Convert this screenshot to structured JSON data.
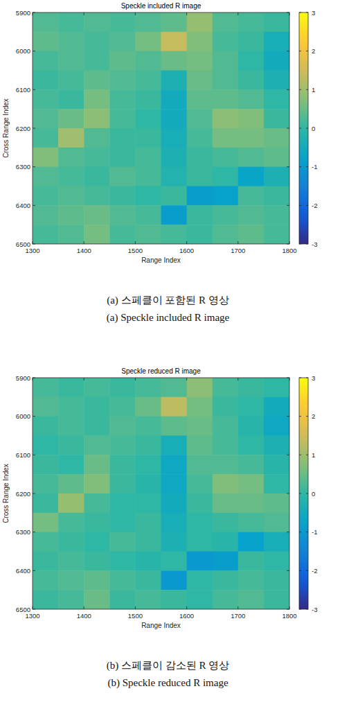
{
  "chart_data": [
    {
      "type": "heatmap",
      "title": "Speckle included R image",
      "x_label": "Range Index",
      "y_label": "Cross Range Index",
      "caption": [
        "(a) 스페클이 포함된 R 영상",
        "(a) Speckle included R image"
      ],
      "xlim": [
        1300,
        1800
      ],
      "ylim": [
        5900,
        6500
      ],
      "xticks": [
        1300,
        1400,
        1500,
        1600,
        1700,
        1800
      ],
      "yticks": [
        5900,
        6000,
        6100,
        6200,
        6300,
        6400,
        6500
      ],
      "x": [
        1325,
        1375,
        1425,
        1475,
        1525,
        1575,
        1625,
        1675,
        1725,
        1775
      ],
      "y": [
        5925,
        5975,
        6025,
        6075,
        6125,
        6175,
        6225,
        6275,
        6325,
        6375,
        6425,
        6475
      ],
      "cells": [
        [
          0.3,
          0.2,
          0.3,
          0.2,
          0.3,
          0.4,
          0.9,
          0.3,
          0.2,
          0.1
        ],
        [
          0.4,
          0.3,
          0.2,
          0.3,
          0.6,
          1.4,
          0.7,
          0.2,
          0.1,
          -0.4
        ],
        [
          0.2,
          0.3,
          0.2,
          0.4,
          0.3,
          0.5,
          0.6,
          0.3,
          0.0,
          -0.5
        ],
        [
          0.1,
          0.2,
          0.4,
          0.3,
          0.2,
          -0.3,
          0.5,
          0.3,
          0.1,
          -0.3
        ],
        [
          0.2,
          0.1,
          0.6,
          0.2,
          0.1,
          -0.5,
          0.4,
          0.4,
          0.3,
          0.0
        ],
        [
          0.3,
          0.5,
          0.8,
          0.2,
          0.0,
          -0.5,
          0.3,
          0.8,
          0.7,
          0.1
        ],
        [
          0.2,
          1.0,
          0.3,
          0.1,
          0.1,
          -0.4,
          0.2,
          0.6,
          0.6,
          0.5
        ],
        [
          0.7,
          0.3,
          0.2,
          0.1,
          0.2,
          -0.3,
          0.1,
          0.2,
          0.3,
          0.4
        ],
        [
          0.3,
          0.2,
          0.1,
          0.3,
          0.2,
          -0.2,
          0.1,
          0.0,
          -0.7,
          -0.3
        ],
        [
          0.2,
          0.3,
          0.2,
          0.1,
          0.0,
          0.1,
          -0.9,
          -0.8,
          0.2,
          0.1
        ],
        [
          0.3,
          0.4,
          0.5,
          0.3,
          0.2,
          -0.9,
          0.1,
          0.2,
          0.3,
          0.2
        ],
        [
          0.2,
          0.3,
          0.6,
          0.2,
          0.3,
          0.2,
          0.1,
          0.3,
          0.4,
          0.2
        ]
      ],
      "colorbar_lim": [
        -3,
        3
      ],
      "colorbar_ticks": [
        -3,
        -2,
        -1,
        0,
        1,
        2,
        3
      ]
    },
    {
      "type": "heatmap",
      "title": "Speckle reduced R image",
      "x_label": "Range Index",
      "y_label": "Cross Range Index",
      "caption": [
        "(b) 스페클이 감소된 R 영상",
        "(b) Speckle reduced R image"
      ],
      "xlim": [
        1300,
        1800
      ],
      "ylim": [
        5900,
        6500
      ],
      "xticks": [
        1300,
        1400,
        1500,
        1600,
        1700,
        1800
      ],
      "yticks": [
        5900,
        6000,
        6100,
        6200,
        6300,
        6400,
        6500
      ],
      "x": [
        1325,
        1375,
        1425,
        1475,
        1525,
        1575,
        1625,
        1675,
        1725,
        1775
      ],
      "y": [
        5925,
        5975,
        6025,
        6075,
        6125,
        6175,
        6225,
        6275,
        6325,
        6375,
        6425,
        6475
      ],
      "cells": [
        [
          0.2,
          0.1,
          0.2,
          0.1,
          0.2,
          0.3,
          0.8,
          0.2,
          0.1,
          0.0
        ],
        [
          0.3,
          0.2,
          0.1,
          0.2,
          0.5,
          1.3,
          0.6,
          0.1,
          0.0,
          -0.5
        ],
        [
          0.1,
          0.2,
          0.1,
          0.3,
          0.2,
          0.4,
          0.5,
          0.2,
          -0.1,
          -0.6
        ],
        [
          0.0,
          0.1,
          0.3,
          0.2,
          0.1,
          -0.4,
          0.4,
          0.2,
          0.0,
          -0.3
        ],
        [
          0.1,
          0.0,
          0.5,
          0.1,
          0.0,
          -0.6,
          0.3,
          0.3,
          0.2,
          -0.1
        ],
        [
          0.2,
          0.4,
          0.7,
          0.1,
          -0.1,
          -0.6,
          0.2,
          0.7,
          0.6,
          0.0
        ],
        [
          0.1,
          0.9,
          0.2,
          0.0,
          0.0,
          -0.5,
          0.1,
          0.5,
          0.5,
          0.4
        ],
        [
          0.6,
          0.2,
          0.1,
          0.0,
          0.1,
          -0.4,
          0.0,
          0.1,
          0.2,
          0.3
        ],
        [
          0.2,
          0.1,
          0.0,
          0.2,
          0.1,
          -0.3,
          0.0,
          -0.1,
          -0.8,
          -0.4
        ],
        [
          0.1,
          0.2,
          0.1,
          0.0,
          -0.1,
          0.0,
          -1.0,
          -0.9,
          0.1,
          0.0
        ],
        [
          0.2,
          0.3,
          0.4,
          0.2,
          0.1,
          -1.0,
          0.0,
          0.1,
          0.2,
          0.1
        ],
        [
          0.1,
          0.2,
          0.5,
          0.1,
          0.2,
          0.1,
          0.0,
          0.2,
          0.3,
          0.1
        ]
      ],
      "colorbar_lim": [
        -3,
        3
      ],
      "colorbar_ticks": [
        -3,
        -2,
        -1,
        0,
        1,
        2,
        3
      ]
    }
  ]
}
